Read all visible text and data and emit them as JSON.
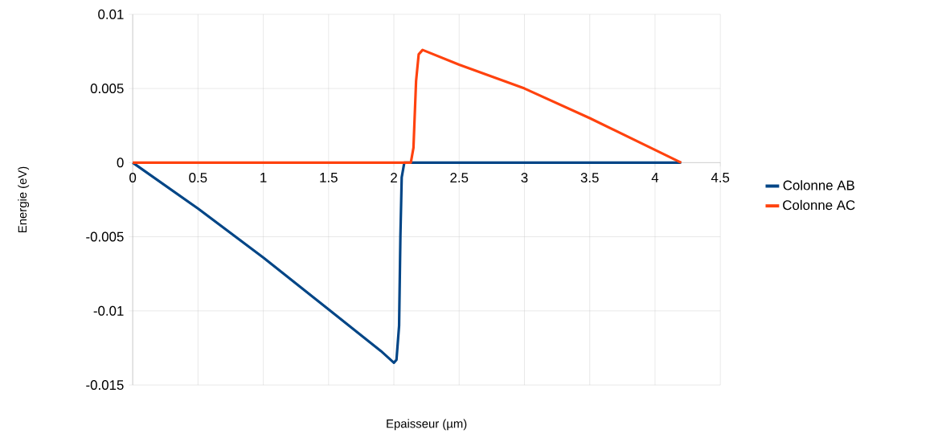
{
  "chart_data": {
    "type": "line",
    "xlabel": "Epaisseur (µm)",
    "ylabel": "Energie (eV)",
    "xlim": [
      0,
      4.5
    ],
    "xticks": [
      0,
      0.5,
      1,
      1.5,
      2,
      2.5,
      3,
      3.5,
      4,
      4.5
    ],
    "ylim": [
      -0.015,
      0.01
    ],
    "yticks": [
      -0.015,
      -0.01,
      -0.005,
      0,
      0.005,
      0.01
    ],
    "grid": true,
    "legend": "right",
    "series": [
      {
        "name": "Colonne AB",
        "color": "#004586",
        "x": [
          0,
          0.5,
          1,
          1.5,
          1.9,
          2.0,
          2.02,
          2.04,
          2.05,
          2.06,
          2.08,
          4.2
        ],
        "values": [
          0,
          -0.0031,
          -0.0064,
          -0.0099,
          -0.0127,
          -0.0135,
          -0.0133,
          -0.011,
          -0.005,
          -0.001,
          0,
          0
        ]
      },
      {
        "name": "Colonne AC",
        "color": "#ff420e",
        "x": [
          0,
          2.13,
          2.15,
          2.17,
          2.19,
          2.22,
          2.5,
          3,
          3.5,
          4.2
        ],
        "values": [
          0,
          0,
          0.001,
          0.0055,
          0.0073,
          0.0076,
          0.0066,
          0.005,
          0.003,
          0
        ]
      }
    ]
  }
}
